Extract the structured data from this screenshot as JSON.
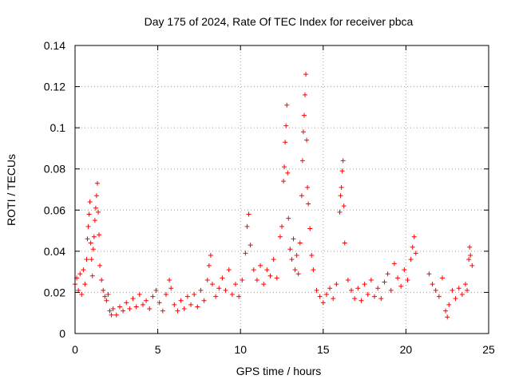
{
  "chart_data": {
    "type": "scatter",
    "title": "Day 175 of 2024, Rate Of TEC Index for receiver pbca",
    "xlabel": "GPS time / hours",
    "ylabel": "ROTI / TECUs",
    "xlim": [
      0,
      25
    ],
    "ylim": [
      0,
      0.14
    ],
    "xticks": [
      "0",
      "5",
      "10",
      "15",
      "20",
      "25"
    ],
    "yticks": [
      "0",
      "0.02",
      "0.04",
      "0.06",
      "0.08",
      "0.1",
      "0.12",
      "0.14"
    ],
    "grid": true,
    "marker": "+",
    "color": "#ff0000",
    "series": [
      {
        "name": "ROTI",
        "points": [
          [
            0.0,
            0.024
          ],
          [
            0.1,
            0.027
          ],
          [
            0.2,
            0.021
          ],
          [
            0.3,
            0.029
          ],
          [
            0.4,
            0.019
          ],
          [
            0.5,
            0.031
          ],
          [
            0.6,
            0.024
          ],
          [
            0.7,
            0.036
          ],
          [
            0.75,
            0.046
          ],
          [
            0.8,
            0.052
          ],
          [
            0.85,
            0.058
          ],
          [
            0.9,
            0.064
          ],
          [
            0.95,
            0.044
          ],
          [
            1.0,
            0.036
          ],
          [
            1.05,
            0.028
          ],
          [
            1.1,
            0.041
          ],
          [
            1.15,
            0.047
          ],
          [
            1.2,
            0.055
          ],
          [
            1.25,
            0.061
          ],
          [
            1.3,
            0.067
          ],
          [
            1.35,
            0.073
          ],
          [
            1.4,
            0.059
          ],
          [
            1.45,
            0.048
          ],
          [
            1.5,
            0.033
          ],
          [
            1.6,
            0.026
          ],
          [
            1.7,
            0.021
          ],
          [
            1.8,
            0.018
          ],
          [
            1.9,
            0.016
          ],
          [
            2.0,
            0.019
          ],
          [
            2.1,
            0.011
          ],
          [
            2.2,
            0.009
          ],
          [
            2.3,
            0.012
          ],
          [
            2.5,
            0.009
          ],
          [
            2.7,
            0.013
          ],
          [
            2.9,
            0.011
          ],
          [
            3.1,
            0.015
          ],
          [
            3.3,
            0.012
          ],
          [
            3.5,
            0.017
          ],
          [
            3.7,
            0.013
          ],
          [
            3.9,
            0.019
          ],
          [
            4.1,
            0.014
          ],
          [
            4.3,
            0.016
          ],
          [
            4.5,
            0.012
          ],
          [
            4.7,
            0.018
          ],
          [
            4.9,
            0.021
          ],
          [
            5.1,
            0.015
          ],
          [
            5.3,
            0.011
          ],
          [
            5.5,
            0.019
          ],
          [
            5.7,
            0.026
          ],
          [
            5.8,
            0.022
          ],
          [
            6.0,
            0.014
          ],
          [
            6.2,
            0.011
          ],
          [
            6.4,
            0.016
          ],
          [
            6.6,
            0.012
          ],
          [
            6.8,
            0.018
          ],
          [
            7.0,
            0.014
          ],
          [
            7.2,
            0.019
          ],
          [
            7.4,
            0.013
          ],
          [
            7.6,
            0.021
          ],
          [
            7.8,
            0.016
          ],
          [
            8.0,
            0.026
          ],
          [
            8.1,
            0.033
          ],
          [
            8.2,
            0.038
          ],
          [
            8.3,
            0.024
          ],
          [
            8.5,
            0.018
          ],
          [
            8.7,
            0.022
          ],
          [
            8.9,
            0.027
          ],
          [
            9.1,
            0.021
          ],
          [
            9.3,
            0.031
          ],
          [
            9.5,
            0.019
          ],
          [
            9.7,
            0.024
          ],
          [
            9.9,
            0.018
          ],
          [
            10.1,
            0.026
          ],
          [
            10.3,
            0.039
          ],
          [
            10.4,
            0.052
          ],
          [
            10.5,
            0.058
          ],
          [
            10.6,
            0.043
          ],
          [
            10.8,
            0.031
          ],
          [
            11.0,
            0.026
          ],
          [
            11.2,
            0.033
          ],
          [
            11.4,
            0.024
          ],
          [
            11.6,
            0.031
          ],
          [
            11.8,
            0.028
          ],
          [
            12.0,
            0.036
          ],
          [
            12.2,
            0.027
          ],
          [
            12.4,
            0.047
          ],
          [
            12.5,
            0.052
          ],
          [
            12.6,
            0.074
          ],
          [
            12.65,
            0.081
          ],
          [
            12.7,
            0.093
          ],
          [
            12.75,
            0.101
          ],
          [
            12.8,
            0.111
          ],
          [
            12.85,
            0.078
          ],
          [
            12.9,
            0.056
          ],
          [
            13.0,
            0.041
          ],
          [
            13.1,
            0.036
          ],
          [
            13.2,
            0.046
          ],
          [
            13.3,
            0.031
          ],
          [
            13.4,
            0.038
          ],
          [
            13.5,
            0.029
          ],
          [
            13.6,
            0.044
          ],
          [
            13.7,
            0.067
          ],
          [
            13.75,
            0.084
          ],
          [
            13.8,
            0.098
          ],
          [
            13.85,
            0.106
          ],
          [
            13.9,
            0.116
          ],
          [
            13.95,
            0.126
          ],
          [
            14.0,
            0.094
          ],
          [
            14.05,
            0.071
          ],
          [
            14.1,
            0.063
          ],
          [
            14.2,
            0.051
          ],
          [
            14.3,
            0.038
          ],
          [
            14.4,
            0.031
          ],
          [
            14.6,
            0.021
          ],
          [
            14.8,
            0.018
          ],
          [
            15.0,
            0.015
          ],
          [
            15.2,
            0.019
          ],
          [
            15.4,
            0.022
          ],
          [
            15.6,
            0.017
          ],
          [
            15.8,
            0.024
          ],
          [
            16.0,
            0.059
          ],
          [
            16.05,
            0.067
          ],
          [
            16.1,
            0.071
          ],
          [
            16.15,
            0.079
          ],
          [
            16.2,
            0.084
          ],
          [
            16.25,
            0.062
          ],
          [
            16.3,
            0.044
          ],
          [
            16.5,
            0.026
          ],
          [
            16.7,
            0.021
          ],
          [
            16.9,
            0.017
          ],
          [
            17.1,
            0.022
          ],
          [
            17.3,
            0.016
          ],
          [
            17.5,
            0.024
          ],
          [
            17.7,
            0.019
          ],
          [
            17.9,
            0.026
          ],
          [
            18.1,
            0.018
          ],
          [
            18.3,
            0.022
          ],
          [
            18.5,
            0.017
          ],
          [
            18.7,
            0.025
          ],
          [
            18.9,
            0.029
          ],
          [
            19.1,
            0.021
          ],
          [
            19.3,
            0.034
          ],
          [
            19.5,
            0.027
          ],
          [
            19.7,
            0.023
          ],
          [
            19.9,
            0.031
          ],
          [
            20.1,
            0.026
          ],
          [
            20.3,
            0.036
          ],
          [
            20.4,
            0.042
          ],
          [
            20.5,
            0.047
          ],
          [
            20.6,
            0.039
          ],
          [
            21.4,
            0.029
          ],
          [
            21.6,
            0.024
          ],
          [
            21.8,
            0.021
          ],
          [
            22.0,
            0.018
          ],
          [
            22.2,
            0.027
          ],
          [
            22.4,
            0.011
          ],
          [
            22.5,
            0.008
          ],
          [
            22.6,
            0.014
          ],
          [
            22.8,
            0.021
          ],
          [
            23.0,
            0.017
          ],
          [
            23.2,
            0.022
          ],
          [
            23.4,
            0.019
          ],
          [
            23.6,
            0.024
          ],
          [
            23.7,
            0.021
          ],
          [
            23.8,
            0.036
          ],
          [
            23.85,
            0.042
          ],
          [
            23.9,
            0.038
          ],
          [
            24.0,
            0.033
          ]
        ]
      }
    ]
  }
}
